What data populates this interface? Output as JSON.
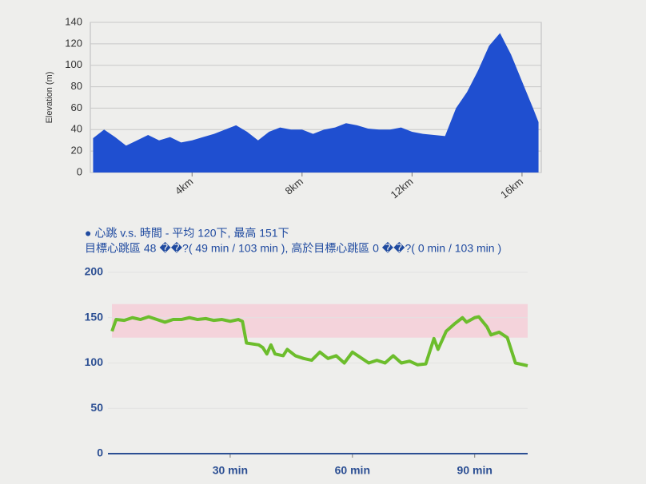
{
  "chart_data": [
    {
      "type": "area",
      "ylabel": "Elevation (m)",
      "color": "#1f4fd0",
      "x": [
        0.4,
        0.8,
        1.2,
        1.6,
        2.0,
        2.4,
        2.8,
        3.2,
        3.6,
        4.0,
        4.4,
        4.8,
        5.2,
        5.6,
        6.0,
        6.4,
        6.8,
        7.2,
        7.6,
        8.0,
        8.4,
        8.8,
        9.2,
        9.6,
        10.0,
        10.4,
        10.8,
        11.2,
        11.6,
        12.0,
        12.4,
        12.8,
        13.2,
        13.6,
        14.0,
        14.4,
        14.8,
        15.2,
        15.6,
        16.0,
        16.4,
        16.6
      ],
      "values": [
        32,
        40,
        33,
        25,
        30,
        35,
        30,
        33,
        28,
        30,
        33,
        36,
        40,
        44,
        38,
        30,
        38,
        42,
        40,
        40,
        36,
        40,
        42,
        46,
        44,
        41,
        40,
        40,
        42,
        38,
        36,
        35,
        34,
        60,
        75,
        95,
        118,
        130,
        110,
        85,
        60,
        47
      ],
      "xlim": [
        0.3,
        16.7
      ],
      "ylim": [
        0,
        140
      ],
      "yticks": [
        0,
        20,
        40,
        60,
        80,
        100,
        120,
        140
      ],
      "xticks": [
        {
          "value": 4,
          "label": "4km"
        },
        {
          "value": 8,
          "label": "8km"
        },
        {
          "value": 12,
          "label": "12km"
        },
        {
          "value": 16,
          "label": "16km"
        }
      ],
      "grid": true
    },
    {
      "type": "line",
      "title": "● 心跳 v.s. 時間 - 平均 120下, 最高 151下",
      "subtitle": "目標心跳區 48 ��?( 49 min / 103 min ), 高於目標心跳區 0 ��?( 0 min / 103 min )",
      "color": "#6cbd2c",
      "band": [
        128,
        165
      ],
      "band_color": "#f4d3db",
      "x": [
        1,
        2,
        4,
        6,
        8,
        10,
        12,
        14,
        16,
        18,
        20,
        22,
        24,
        26,
        28,
        30,
        32,
        33,
        34,
        37,
        38,
        39,
        40,
        41,
        43,
        44,
        46,
        48,
        50,
        52,
        54,
        56,
        58,
        60,
        62,
        64,
        66,
        68,
        70,
        72,
        74,
        76,
        78,
        80,
        81,
        83,
        85,
        87,
        88,
        90,
        91,
        93,
        94,
        96,
        98,
        100,
        103
      ],
      "values": [
        135,
        148,
        147,
        150,
        148,
        151,
        148,
        145,
        148,
        148,
        150,
        148,
        149,
        147,
        148,
        146,
        148,
        146,
        122,
        120,
        117,
        110,
        120,
        110,
        108,
        115,
        108,
        105,
        103,
        112,
        105,
        108,
        100,
        112,
        106,
        100,
        103,
        100,
        108,
        100,
        102,
        98,
        99,
        127,
        115,
        135,
        143,
        150,
        145,
        150,
        151,
        140,
        131,
        134,
        128,
        100,
        97
      ],
      "xlim": [
        0,
        103
      ],
      "ylim": [
        0,
        200
      ],
      "yticks": [
        0,
        50,
        100,
        150,
        200
      ],
      "xticks": [
        {
          "value": 30,
          "label": "30 min"
        },
        {
          "value": 60,
          "label": "60 min"
        },
        {
          "value": 90,
          "label": "90 min"
        }
      ],
      "grid": true
    }
  ]
}
